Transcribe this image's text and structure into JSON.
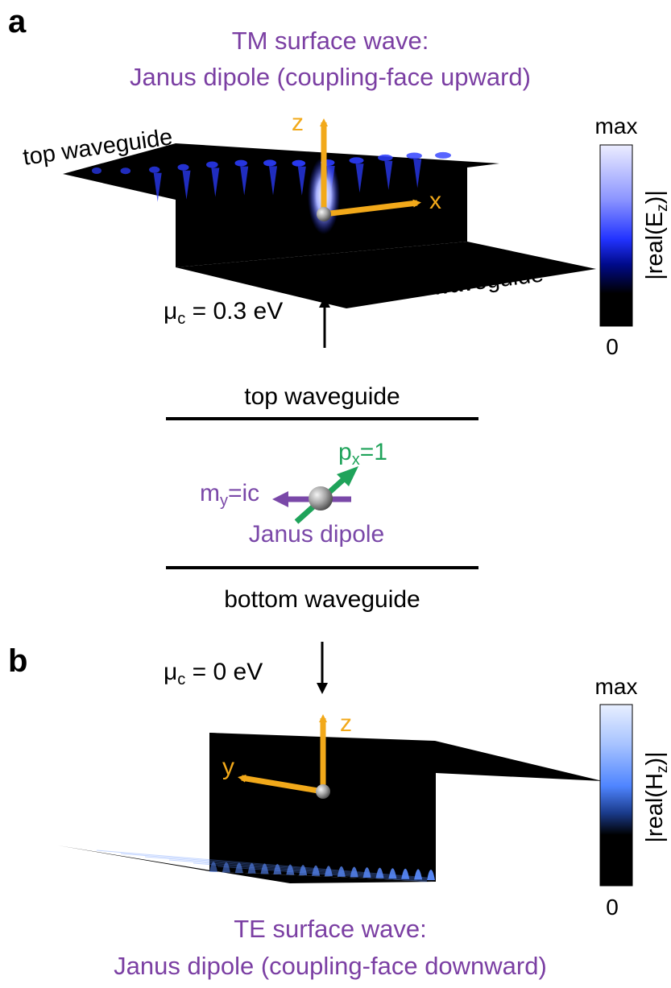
{
  "panel_a": {
    "label": "a",
    "title_line1": "TM surface wave:",
    "title_line2": "Janus dipole (coupling-face upward)",
    "top_waveguide": "top waveguide",
    "bottom_waveguide": "bottom waveguide",
    "axis_z": "z",
    "axis_x": "x",
    "mu": {
      "symbol": "μ",
      "sub": "c",
      "rest": " = 0.3 eV"
    },
    "colorbar": {
      "max": "max",
      "min": "0",
      "label_pre": "|real(E",
      "label_sub": "z",
      "label_post": ")|"
    }
  },
  "middle_schematic": {
    "top_waveguide": "top waveguide",
    "bottom_waveguide": "bottom waveguide",
    "px": {
      "base": "p",
      "sub": "x",
      "rest": "=1"
    },
    "my": {
      "base": "m",
      "sub": "y",
      "rest": "=ic"
    },
    "janus": "Janus dipole"
  },
  "panel_b": {
    "label": "b",
    "title_line1": "TE surface wave:",
    "title_line2": "Janus dipole (coupling-face downward)",
    "axis_z": "z",
    "axis_y": "y",
    "mu": {
      "symbol": "μ",
      "sub": "c",
      "rest": " = 0 eV"
    },
    "colorbar": {
      "max": "max",
      "min": "0",
      "label_pre": "|real(H",
      "label_sub": "z",
      "label_post": ")|"
    }
  },
  "colors": {
    "title_purple": "#7b3fa3",
    "axis_orange": "#f2a91a",
    "dipole_green": "#1fa35a",
    "dipole_purple": "#7a48a8",
    "field_blue_a": "#2b3cff",
    "field_blue_b": "#5a8cff"
  },
  "icons": [
    "dipole-sphere-icon",
    "arrow-up-icon",
    "arrow-down-icon"
  ]
}
